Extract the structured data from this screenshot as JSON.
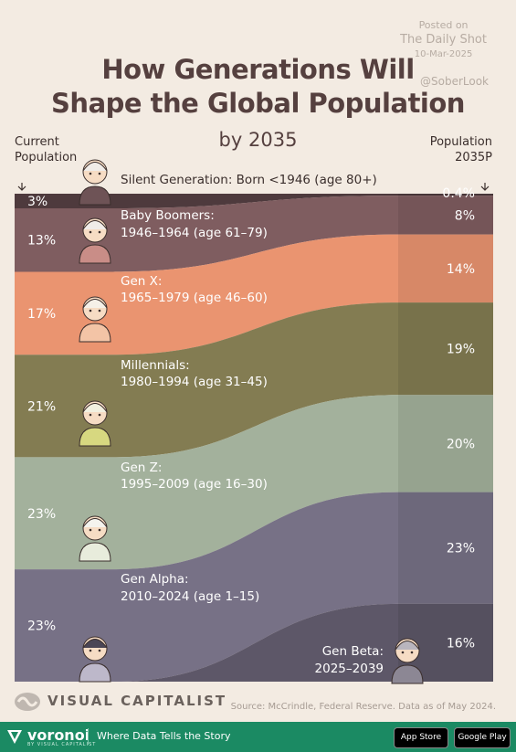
{
  "header": {
    "posted_on": "Posted on",
    "publication": "The Daily Shot",
    "date": "10-Mar-2025",
    "handle": "@SoberLook",
    "title_line1": "How Generations Will",
    "title_line2": "Shape the Global Population",
    "subtitle": "by 2035",
    "left_column_line1": "Current",
    "left_column_line2": "Population",
    "right_column_line1": "Population",
    "right_column_line2": "2035P"
  },
  "chart_data": {
    "type": "area",
    "periods": [
      "Current Population",
      "Population 2035P"
    ],
    "series": [
      {
        "name": "Silent Generation",
        "label": "Silent Generation:",
        "range": "Born <1946 (age 80+)",
        "current": 3,
        "current_label": "3%",
        "projected": 0.4,
        "projected_label": "0.4%",
        "color": "#4e3a3d"
      },
      {
        "name": "Baby Boomers",
        "label": "Baby Boomers:",
        "range": "1946–1964 (age 61–79)",
        "current": 13,
        "current_label": "13%",
        "projected": 8,
        "projected_label": "8%",
        "color": "#7f5d60"
      },
      {
        "name": "Gen X",
        "label": "Gen X:",
        "range": "1965–1979 (age 46–60)",
        "current": 17,
        "current_label": "17%",
        "projected": 14,
        "projected_label": "14%",
        "color": "#ea9470"
      },
      {
        "name": "Millennials",
        "label": "Millennials:",
        "range": "1980–1994 (age 31–45)",
        "current": 21,
        "current_label": "21%",
        "projected": 19,
        "projected_label": "19%",
        "color": "#837c52"
      },
      {
        "name": "Gen Z",
        "label": "Gen Z:",
        "range": "1995–2009 (age 16–30)",
        "current": 23,
        "current_label": "23%",
        "projected": 20,
        "projected_label": "20%",
        "color": "#a3b19c"
      },
      {
        "name": "Gen Alpha",
        "label": "Gen Alpha:",
        "range": "2010–2024 (age 1–15)",
        "current": 23,
        "current_label": "23%",
        "projected": 23,
        "projected_label": "23%",
        "color": "#777186"
      },
      {
        "name": "Gen Beta",
        "label": "Gen Beta:",
        "range": "2025–2039",
        "current": 0,
        "current_label": "",
        "projected": 16,
        "projected_label": "16%",
        "color": "#5d5768"
      }
    ],
    "colors": {
      "label_light": "#ffffff",
      "label_dark": "#3a2e2c"
    }
  },
  "footer": {
    "logo": "VISUAL CAPITALIST",
    "source": "Source: McCrindle, Federal Reserve. Data as of May 2024.",
    "brand": "voronoi",
    "brand_sub": "BY VISUAL CAPITALIST",
    "tagline": "Where Data Tells the Story",
    "app_store": "App Store",
    "google_play": "Google Play"
  }
}
